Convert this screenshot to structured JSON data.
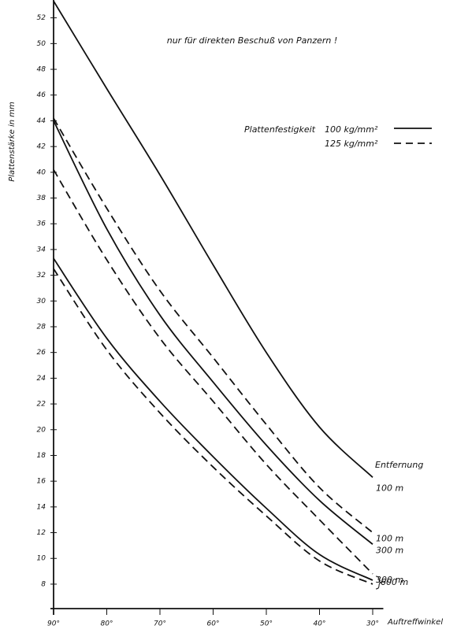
{
  "chart_data": {
    "type": "line",
    "annotation": "nur für direkten Beschuß von Panzern !",
    "y_label": "Plattenstärke in mm",
    "x_label": "Auftreffwinkel",
    "distance_title": "Entfernung",
    "legend": {
      "title": "Plattenfestigkeit",
      "entries": [
        "100 kg/mm²",
        "125 kg/mm²"
      ]
    },
    "x": [
      90,
      80,
      70,
      60,
      50,
      40,
      30
    ],
    "series": [
      {
        "name": "100 m",
        "color": "#111111",
        "dashed": false,
        "values": [
          53.3,
          46.5,
          39.8,
          32.8,
          26.0,
          20.2,
          16.3
        ]
      },
      {
        "name": "100 m",
        "color": "#111111",
        "dashed": true,
        "values": [
          44.2,
          37.2,
          30.8,
          25.6,
          20.4,
          15.5,
          12.0
        ]
      },
      {
        "name": "300 m",
        "color": "#111111",
        "dashed": false,
        "values": [
          44.0,
          35.6,
          28.9,
          23.7,
          18.8,
          14.5,
          11.1
        ]
      },
      {
        "name": "300 m",
        "color": "#111111",
        "dashed": true,
        "values": [
          40.2,
          33.2,
          27.1,
          22.2,
          17.3,
          13.0,
          8.8
        ]
      },
      {
        "name": "600 m",
        "color": "#111111",
        "dashed": false,
        "values": [
          33.3,
          27.1,
          22.2,
          17.9,
          13.9,
          10.3,
          8.3
        ]
      },
      {
        "color": "#111111",
        "dashed": true,
        "values": [
          32.5,
          26.2,
          21.3,
          17.1,
          13.3,
          9.8,
          8.0
        ]
      }
    ],
    "xlim": [
      90,
      28
    ],
    "ylim": [
      6.1,
      53.3
    ],
    "xticks": [
      {
        "value": 90,
        "label": "90°"
      },
      {
        "value": 80,
        "label": "80°"
      },
      {
        "value": 70,
        "label": "70°"
      },
      {
        "value": 60,
        "label": "60°"
      },
      {
        "value": 50,
        "label": "50°"
      },
      {
        "value": 40,
        "label": "40°"
      },
      {
        "value": 30,
        "label": "30°"
      }
    ],
    "yticks": [
      8,
      10,
      12,
      14,
      16,
      18,
      20,
      22,
      24,
      26,
      28,
      30,
      32,
      34,
      36,
      38,
      40,
      42,
      44,
      46,
      48,
      50,
      52
    ],
    "grid": false
  }
}
